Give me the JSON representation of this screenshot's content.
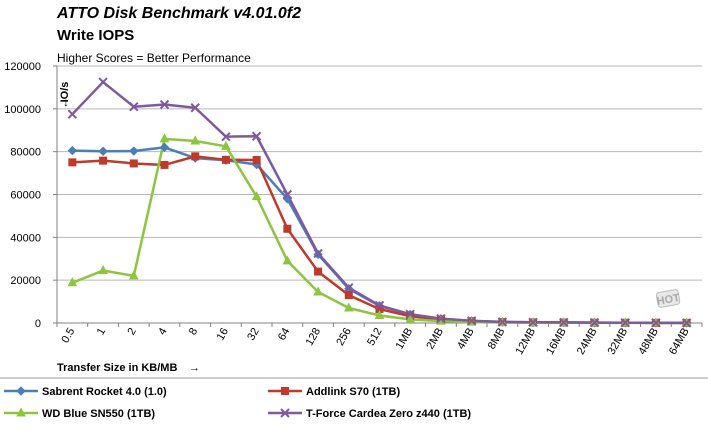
{
  "chart_data": {
    "type": "line",
    "title": "ATTO Disk Benchmark v4.01.0f2",
    "subtitle": "Write IOPS",
    "note": "Higher Scores = Better Performance",
    "ylabel": "IO/s",
    "xlabel": "Transfer Size in KB/MB",
    "ylim": [
      0,
      120000
    ],
    "yticks": [
      0,
      20000,
      40000,
      60000,
      80000,
      100000,
      120000
    ],
    "grid": true,
    "legend_position": "bottom",
    "categories": [
      "0.5",
      "1",
      "2",
      "4",
      "8",
      "16",
      "32",
      "64",
      "128",
      "256",
      "512",
      "1MB",
      "2MB",
      "4MB",
      "8MB",
      "12MB",
      "16MB",
      "24MB",
      "32MB",
      "48MB",
      "64MB"
    ],
    "series": [
      {
        "name": "Sabrent Rocket 4.0 (1.0)",
        "color": "#4a7ebb",
        "marker": "diamond",
        "values": [
          80500,
          80200,
          80300,
          82000,
          77000,
          76000,
          74000,
          58000,
          32000,
          16000,
          8000,
          4000,
          2000,
          1000,
          500,
          350,
          270,
          180,
          130,
          90,
          70
        ]
      },
      {
        "name": "Addlink S70 (1TB)",
        "color": "#c0392b",
        "marker": "square",
        "values": [
          75000,
          75800,
          74500,
          73800,
          77800,
          76200,
          76100,
          44000,
          24000,
          13000,
          6500,
          3200,
          1600,
          800,
          400,
          280,
          210,
          140,
          100,
          70,
          50
        ]
      },
      {
        "name": "WD Blue SN550 (1TB)",
        "color": "#8cc63e",
        "marker": "triangle",
        "values": [
          18800,
          24500,
          22000,
          86000,
          85000,
          82500,
          59000,
          29000,
          14500,
          7000,
          3500,
          1700,
          850,
          420,
          210,
          150,
          110,
          75,
          55,
          38,
          28
        ]
      },
      {
        "name": "T-Force Cardea Zero z440 (1TB)",
        "color": "#7d5aa0",
        "marker": "x",
        "values": [
          97500,
          112500,
          101000,
          102000,
          100500,
          87000,
          87200,
          60000,
          32500,
          16500,
          8200,
          4100,
          2050,
          1020,
          510,
          340,
          255,
          170,
          128,
          85,
          64
        ]
      }
    ]
  },
  "watermark": "HOT"
}
